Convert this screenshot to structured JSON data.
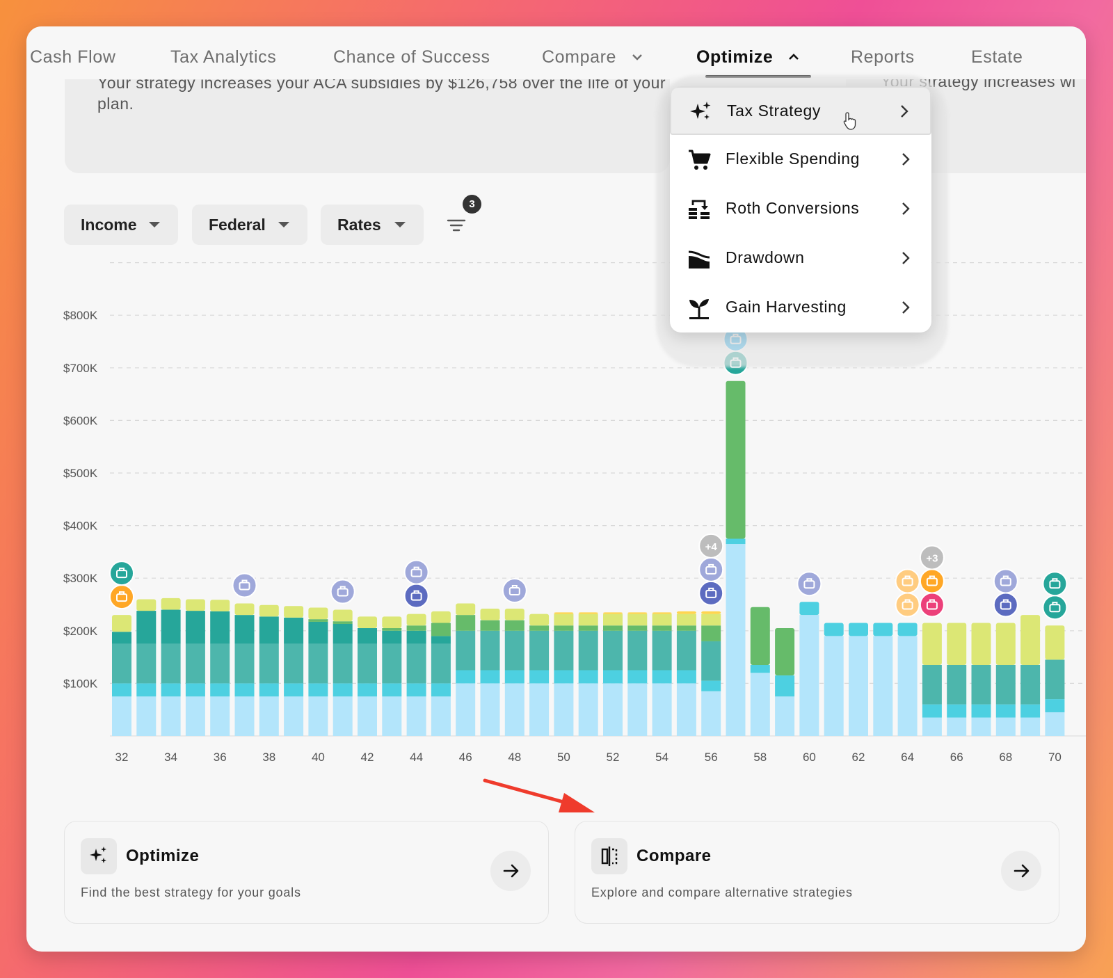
{
  "nav": {
    "items": [
      {
        "label": "Cash Flow",
        "active": false
      },
      {
        "label": "Tax Analytics",
        "active": false
      },
      {
        "label": "Chance of Success",
        "active": false
      },
      {
        "label": "Compare",
        "active": false,
        "chevron": "chevron-down-icon"
      },
      {
        "label": "Optimize",
        "active": true,
        "chevron": "chevron-up-icon"
      },
      {
        "label": "Reports",
        "active": false
      },
      {
        "label": "Estate",
        "active": false
      }
    ]
  },
  "summary": {
    "text": "Your strategy increases your ACA subsidies by $126,758 over the life of your plan.",
    "second_text": "Your strategy increases wi"
  },
  "filters": {
    "chips": [
      {
        "label": "Income"
      },
      {
        "label": "Federal"
      },
      {
        "label": "Rates"
      }
    ],
    "active_count": "3"
  },
  "menu": {
    "items": [
      {
        "label": "Tax Strategy",
        "icon": "sparkles-icon",
        "hover": true
      },
      {
        "label": "Flexible Spending",
        "icon": "cart-icon"
      },
      {
        "label": "Roth Conversions",
        "icon": "roth-conversion-icon"
      },
      {
        "label": "Drawdown",
        "icon": "drawdown-icon"
      },
      {
        "label": "Gain Harvesting",
        "icon": "sprout-icon"
      }
    ]
  },
  "colors": {
    "light_blue": "#b3e5fb",
    "cyan": "#4dd0e1",
    "teal": "#4db6ac",
    "dark_teal": "#26a69a",
    "green": "#66bb6a",
    "lime": "#dce775",
    "yellow": "#ffd54f",
    "event_purple": "#5c6bc0",
    "event_gray": "#bdbdbd"
  },
  "chart_data": {
    "type": "bar",
    "stacked": true,
    "y_tick_labels": [
      "$100K",
      "$200K",
      "$300K",
      "$400K",
      "$500K",
      "$600K",
      "$700K",
      "$800K"
    ],
    "x_tick_labels": [
      "32",
      "34",
      "36",
      "38",
      "40",
      "42",
      "44",
      "46",
      "48",
      "50",
      "52",
      "54",
      "56",
      "58",
      "60",
      "62",
      "64",
      "66",
      "68",
      "70"
    ],
    "ylim": [
      0,
      800000
    ],
    "grid": "dashed horizontal",
    "x": [
      32,
      33,
      34,
      35,
      36,
      37,
      38,
      39,
      40,
      41,
      42,
      43,
      44,
      45,
      46,
      47,
      48,
      49,
      50,
      51,
      52,
      53,
      54,
      55,
      56,
      57,
      58,
      59,
      60,
      61,
      62,
      63,
      64,
      65,
      66,
      67,
      68,
      69,
      70
    ],
    "series": [
      {
        "color": "#b3e5fb",
        "values": [
          75,
          75,
          75,
          75,
          75,
          75,
          75,
          75,
          75,
          75,
          75,
          75,
          75,
          75,
          100,
          100,
          100,
          100,
          100,
          100,
          100,
          100,
          100,
          100,
          85,
          365,
          120,
          75,
          230,
          190,
          190,
          190,
          190,
          35,
          35,
          35,
          35,
          35,
          45
        ]
      },
      {
        "color": "#4dd0e1",
        "values": [
          25,
          25,
          25,
          25,
          25,
          25,
          25,
          25,
          25,
          25,
          25,
          25,
          25,
          25,
          25,
          25,
          25,
          25,
          25,
          25,
          25,
          25,
          25,
          25,
          20,
          10,
          15,
          40,
          25,
          25,
          25,
          25,
          25,
          25,
          25,
          25,
          25,
          25,
          25
        ]
      },
      {
        "color": "#4db6ac",
        "values": [
          75,
          75,
          75,
          75,
          75,
          75,
          75,
          75,
          75,
          75,
          75,
          75,
          75,
          75,
          75,
          75,
          75,
          75,
          75,
          75,
          75,
          75,
          75,
          75,
          75,
          0,
          0,
          0,
          0,
          0,
          0,
          0,
          0,
          75,
          75,
          75,
          75,
          75,
          75
        ]
      },
      {
        "color": "#26a69a",
        "values": [
          23,
          63,
          65,
          63,
          62,
          55,
          52,
          50,
          42,
          38,
          30,
          25,
          25,
          15,
          0,
          0,
          0,
          0,
          0,
          0,
          0,
          0,
          0,
          0,
          0,
          0,
          0,
          0,
          0,
          0,
          0,
          0,
          0,
          0,
          0,
          0,
          0,
          0,
          0
        ]
      },
      {
        "color": "#66bb6a",
        "values": [
          0,
          0,
          0,
          0,
          0,
          0,
          0,
          0,
          5,
          5,
          0,
          5,
          10,
          25,
          30,
          20,
          20,
          10,
          10,
          10,
          10,
          10,
          10,
          10,
          30,
          300,
          110,
          90,
          0,
          0,
          0,
          0,
          0,
          0,
          0,
          0,
          0,
          0,
          0
        ]
      },
      {
        "color": "#dce775",
        "values": [
          32,
          22,
          22,
          22,
          22,
          22,
          22,
          22,
          22,
          22,
          22,
          22,
          22,
          22,
          22,
          22,
          22,
          22,
          22,
          22,
          22,
          22,
          22,
          22,
          22,
          0,
          0,
          0,
          0,
          0,
          0,
          0,
          0,
          80,
          80,
          80,
          80,
          95,
          65
        ]
      },
      {
        "color": "#ffd54f",
        "values": [
          0,
          0,
          0,
          0,
          0,
          0,
          0,
          0,
          0,
          0,
          0,
          0,
          0,
          0,
          0,
          0,
          0,
          0,
          3,
          3,
          3,
          3,
          3,
          5,
          5,
          0,
          0,
          0,
          0,
          0,
          0,
          0,
          0,
          0,
          0,
          0,
          0,
          0,
          0
        ]
      }
    ],
    "events": [
      {
        "x": 32,
        "stack": [
          "#ffa726",
          "#26a69a"
        ],
        "icons": [
          "beach-icon",
          "piggy-bank-icon"
        ]
      },
      {
        "x": 37,
        "stack": [
          "#9fa8da"
        ],
        "icons": [
          "briefcase-icon"
        ]
      },
      {
        "x": 41,
        "stack": [
          "#9fa8da"
        ],
        "icons": [
          "briefcase-icon"
        ]
      },
      {
        "x": 44,
        "stack": [
          "#5c6bc0",
          "#9fa8da"
        ],
        "icons": [
          "car-icon",
          "car-icon"
        ]
      },
      {
        "x": 48,
        "stack": [
          "#9fa8da"
        ],
        "icons": [
          "briefcase-icon"
        ]
      },
      {
        "x": 56,
        "stack": [
          "#5c6bc0",
          "#9fa8da",
          "#bdbdbd"
        ],
        "icons": [
          "car-icon",
          "car-icon"
        ],
        "label": "+4"
      },
      {
        "x": 57,
        "stack": [
          "#26a69a",
          "#29b6f6"
        ],
        "icons": [
          "palm-tree-icon",
          "palm-tree-icon"
        ]
      },
      {
        "x": 60,
        "stack": [
          "#9fa8da"
        ],
        "icons": [
          "briefcase-icon"
        ]
      },
      {
        "x": 64,
        "stack": [
          "#ffcc80",
          "#ffcc80"
        ],
        "icons": [
          "home-icon",
          "heart-icon"
        ]
      },
      {
        "x": 65,
        "stack": [
          "#ec407a",
          "#ffa726",
          "#bdbdbd"
        ],
        "icons": [
          "medical-bag-icon",
          "medical-plus-icon"
        ],
        "label": "+3"
      },
      {
        "x": 68,
        "stack": [
          "#5c6bc0",
          "#9fa8da"
        ],
        "icons": [
          "car-icon",
          "car-icon"
        ]
      },
      {
        "x": 70,
        "stack": [
          "#26a69a",
          "#26a69a"
        ],
        "icons": [
          "face-icon",
          "face-icon"
        ]
      }
    ]
  },
  "cards": [
    {
      "title": "Optimize",
      "subtitle": "Find the best strategy for your goals",
      "icon": "sparkles-icon"
    },
    {
      "title": "Compare",
      "subtitle": "Explore and compare alternative strategies",
      "icon": "compare-icon"
    }
  ]
}
